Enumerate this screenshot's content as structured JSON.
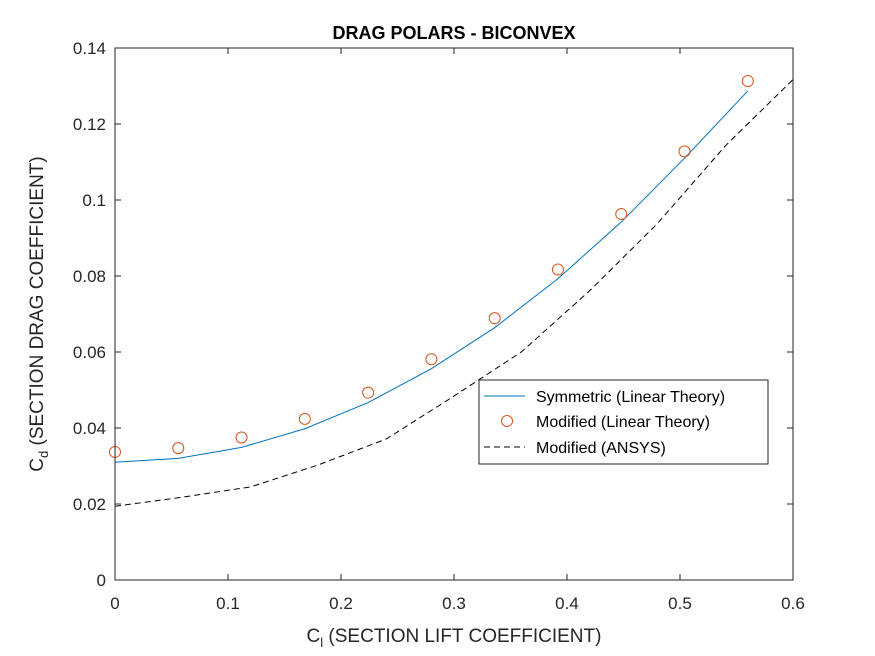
{
  "chart_data": {
    "type": "line",
    "title": "DRAG POLARS - BICONVEX",
    "xlabel": {
      "main": "C",
      "sub": "l",
      "rest": " (SECTION LIFT COEFFICIENT)"
    },
    "ylabel": {
      "main": "C",
      "sub": "d",
      "rest": " (SECTION DRAG COEFFICIENT)"
    },
    "xlim": [
      0,
      0.6
    ],
    "ylim": [
      0,
      0.14
    ],
    "xticks": [
      0,
      0.1,
      0.2,
      0.3,
      0.4,
      0.5,
      0.6
    ],
    "xtick_labels": [
      "0",
      "0.1",
      "0.2",
      "0.3",
      "0.4",
      "0.5",
      "0.6"
    ],
    "yticks": [
      0,
      0.02,
      0.04,
      0.06,
      0.08,
      0.1,
      0.12,
      0.14
    ],
    "ytick_labels": [
      "0",
      "0.02",
      "0.04",
      "0.06",
      "0.08",
      "0.1",
      "0.12",
      "0.14"
    ],
    "grid": false,
    "legend_position": "right",
    "series": [
      {
        "name": "Symmetric (Linear Theory)",
        "style": "solid",
        "color": "#0072BD",
        "x": [
          0,
          0.056,
          0.112,
          0.168,
          0.224,
          0.28,
          0.336,
          0.392,
          0.448,
          0.504,
          0.56
        ],
        "y": [
          0.031,
          0.032,
          0.0349,
          0.0398,
          0.0467,
          0.0556,
          0.0664,
          0.0793,
          0.0942,
          0.111,
          0.1287
        ]
      },
      {
        "name": "Modified (Linear Theory)",
        "style": "markers",
        "color": "#D95319",
        "x": [
          0,
          0.056,
          0.112,
          0.168,
          0.224,
          0.28,
          0.336,
          0.392,
          0.448,
          0.504,
          0.56
        ],
        "y": [
          0.0337,
          0.0347,
          0.0375,
          0.0424,
          0.0493,
          0.0581,
          0.0689,
          0.0817,
          0.0963,
          0.1128,
          0.1313
        ]
      },
      {
        "name": "Modified (ANSYS)",
        "style": "dashed",
        "color": "#000000",
        "x": [
          0,
          0.06,
          0.12,
          0.18,
          0.24,
          0.3,
          0.36,
          0.42,
          0.48,
          0.54,
          0.6
        ],
        "y": [
          0.0194,
          0.0218,
          0.0245,
          0.0303,
          0.0371,
          0.0484,
          0.0601,
          0.0761,
          0.0938,
          0.1142,
          0.1317
        ]
      }
    ]
  }
}
